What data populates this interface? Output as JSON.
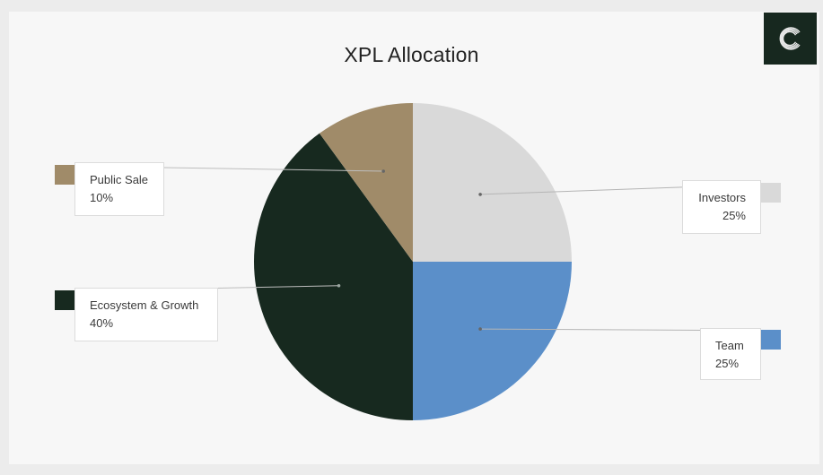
{
  "chart_data": {
    "type": "pie",
    "title": "XPL Allocation",
    "slices": [
      {
        "name": "Investors",
        "value": 25,
        "label": "25%",
        "color": "#d9d9d9"
      },
      {
        "name": "Team",
        "value": 25,
        "label": "25%",
        "color": "#5b8fc9"
      },
      {
        "name": "Ecosystem & Growth",
        "value": 40,
        "label": "40%",
        "color": "#17291f"
      },
      {
        "name": "Public Sale",
        "value": 10,
        "label": "10%",
        "color": "#a08b69"
      }
    ],
    "start_angle": "12 o'clock",
    "direction": "clockwise",
    "legend": "callouts"
  },
  "logo": {
    "icon": "ring-logo-icon",
    "background": "#17281f"
  }
}
